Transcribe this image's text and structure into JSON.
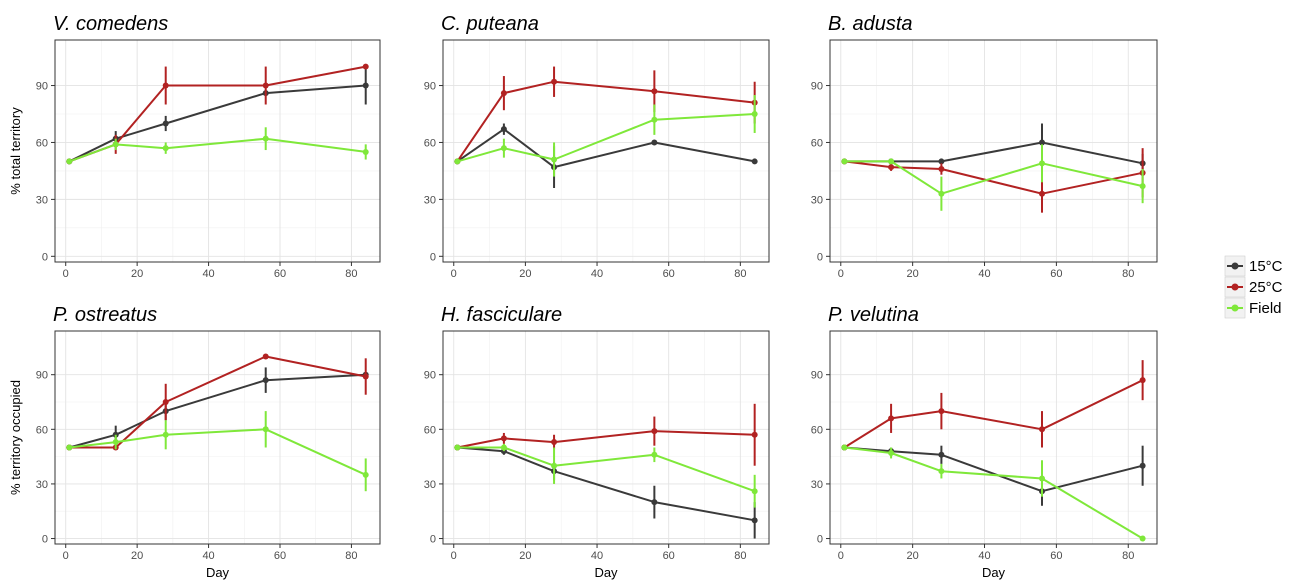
{
  "colors": {
    "15°C": "#3a3a3a",
    "25°C": "#b22222",
    "Field": "#7fe83a"
  },
  "legend": {
    "items": [
      "15°C",
      "25°C",
      "Field"
    ]
  },
  "chart_data": [
    {
      "type": "line",
      "title": "V. comedens",
      "xlabel": "",
      "ylabel": "% total territory",
      "x": [
        1,
        14,
        28,
        56,
        84
      ],
      "xlim": [
        -3,
        88
      ],
      "ylim": [
        -3,
        114
      ],
      "xticks": [
        0,
        20,
        40,
        60,
        80
      ],
      "yticks": [
        0,
        30,
        60,
        90
      ],
      "grid": true,
      "series": [
        {
          "name": "15°C",
          "values": [
            50,
            62,
            70,
            86,
            90
          ],
          "errors": [
            0,
            4,
            4,
            0,
            10
          ]
        },
        {
          "name": "25°C",
          "values": [
            50,
            59,
            90,
            90,
            100
          ],
          "errors": [
            0,
            5,
            10,
            10,
            0
          ]
        },
        {
          "name": "Field",
          "values": [
            50,
            59,
            57,
            62,
            55
          ],
          "errors": [
            0,
            3,
            3,
            6,
            4
          ]
        }
      ]
    },
    {
      "type": "line",
      "title": "C. puteana",
      "xlabel": "",
      "ylabel": "",
      "x": [
        1,
        14,
        28,
        56,
        84
      ],
      "xlim": [
        -3,
        88
      ],
      "ylim": [
        -3,
        114
      ],
      "xticks": [
        0,
        20,
        40,
        60,
        80
      ],
      "yticks": [
        0,
        30,
        60,
        90
      ],
      "grid": true,
      "series": [
        {
          "name": "15°C",
          "values": [
            50,
            67,
            47,
            60,
            50
          ],
          "errors": [
            0,
            3,
            11,
            0,
            0
          ]
        },
        {
          "name": "25°C",
          "values": [
            50,
            86,
            92,
            87,
            81
          ],
          "errors": [
            0,
            9,
            8,
            11,
            11
          ]
        },
        {
          "name": "Field",
          "values": [
            50,
            57,
            51,
            72,
            75
          ],
          "errors": [
            0,
            5,
            9,
            8,
            10
          ]
        }
      ]
    },
    {
      "type": "line",
      "title": "B. adusta",
      "xlabel": "",
      "ylabel": "",
      "x": [
        1,
        14,
        28,
        56,
        84
      ],
      "xlim": [
        -3,
        88
      ],
      "ylim": [
        -3,
        114
      ],
      "xticks": [
        0,
        20,
        40,
        60,
        80
      ],
      "yticks": [
        0,
        30,
        60,
        90
      ],
      "grid": true,
      "series": [
        {
          "name": "15°C",
          "values": [
            50,
            50,
            50,
            60,
            49
          ],
          "errors": [
            0,
            0,
            0,
            10,
            5
          ]
        },
        {
          "name": "25°C",
          "values": [
            50,
            47,
            46,
            33,
            44
          ],
          "errors": [
            0,
            2,
            3,
            10,
            13
          ]
        },
        {
          "name": "Field",
          "values": [
            50,
            50,
            33,
            49,
            37
          ],
          "errors": [
            0,
            0,
            9,
            10,
            9
          ]
        }
      ]
    },
    {
      "type": "line",
      "title": "P. ostreatus",
      "xlabel": "Day",
      "ylabel": "% territory occupied",
      "x": [
        1,
        14,
        28,
        56,
        84
      ],
      "xlim": [
        -3,
        88
      ],
      "ylim": [
        -3,
        114
      ],
      "xticks": [
        0,
        20,
        40,
        60,
        80
      ],
      "yticks": [
        0,
        30,
        60,
        90
      ],
      "grid": true,
      "series": [
        {
          "name": "15°C",
          "values": [
            50,
            57,
            70,
            87,
            90
          ],
          "errors": [
            0,
            5,
            5,
            7,
            0
          ]
        },
        {
          "name": "25°C",
          "values": [
            50,
            50,
            75,
            100,
            89
          ],
          "errors": [
            0,
            0,
            10,
            0,
            10
          ]
        },
        {
          "name": "Field",
          "values": [
            50,
            53,
            57,
            60,
            35
          ],
          "errors": [
            0,
            4,
            8,
            10,
            9
          ]
        }
      ]
    },
    {
      "type": "line",
      "title": "H. fasciculare",
      "xlabel": "Day",
      "ylabel": "",
      "x": [
        1,
        14,
        28,
        56,
        84
      ],
      "xlim": [
        -3,
        88
      ],
      "ylim": [
        -3,
        114
      ],
      "xticks": [
        0,
        20,
        40,
        60,
        80
      ],
      "yticks": [
        0,
        30,
        60,
        90
      ],
      "grid": true,
      "series": [
        {
          "name": "15°C",
          "values": [
            50,
            48,
            37,
            20,
            10
          ],
          "errors": [
            0,
            2,
            5,
            9,
            10
          ]
        },
        {
          "name": "25°C",
          "values": [
            50,
            55,
            53,
            59,
            57
          ],
          "errors": [
            0,
            3,
            4,
            8,
            17
          ]
        },
        {
          "name": "Field",
          "values": [
            50,
            50,
            40,
            46,
            26
          ],
          "errors": [
            0,
            2,
            10,
            4,
            9
          ]
        }
      ]
    },
    {
      "type": "line",
      "title": "P. velutina",
      "xlabel": "Day",
      "ylabel": "",
      "x": [
        1,
        14,
        28,
        56,
        84
      ],
      "xlim": [
        -3,
        88
      ],
      "ylim": [
        -3,
        114
      ],
      "xticks": [
        0,
        20,
        40,
        60,
        80
      ],
      "yticks": [
        0,
        30,
        60,
        90
      ],
      "grid": true,
      "series": [
        {
          "name": "15°C",
          "values": [
            50,
            48,
            46,
            26,
            40
          ],
          "errors": [
            0,
            2,
            5,
            8,
            11
          ]
        },
        {
          "name": "25°C",
          "values": [
            50,
            66,
            70,
            60,
            87
          ],
          "errors": [
            0,
            8,
            10,
            10,
            11
          ]
        },
        {
          "name": "Field",
          "values": [
            50,
            47,
            37,
            33,
            0
          ],
          "errors": [
            0,
            3,
            4,
            10,
            0
          ]
        }
      ]
    }
  ]
}
